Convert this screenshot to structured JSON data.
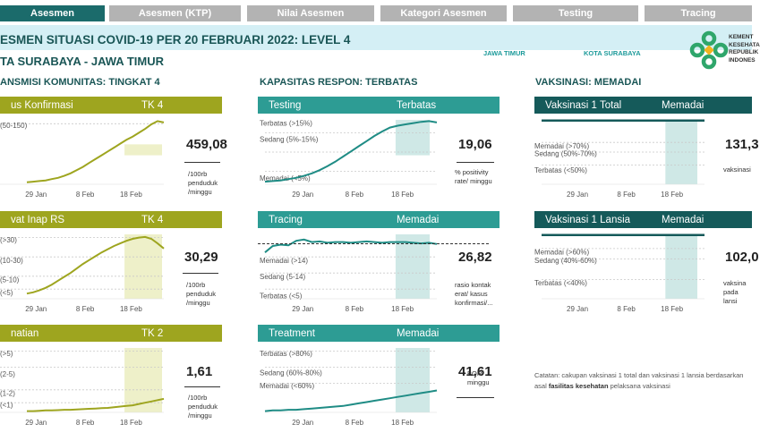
{
  "tabs": [
    {
      "label": "Asesmen",
      "active": true
    },
    {
      "label": "Asesmen (KTP)",
      "active": false
    },
    {
      "label": "Nilai Asesmen",
      "active": false
    },
    {
      "label": "Kategori Asesmen",
      "active": false
    },
    {
      "label": "Testing",
      "active": false
    },
    {
      "label": "Tracing",
      "active": false
    }
  ],
  "header": {
    "title": "ESMEN SITUASI COVID-19 PER 20 FEBRUARI 2022: LEVEL 4",
    "region": "TA SURABAYA - JAWA TIMUR",
    "province_link": "JAWA TIMUR",
    "city_link": "KOTA SURABAYA",
    "logo_text": [
      "KEMENT",
      "KESEHATA",
      "REPUBLIK",
      "INDONES"
    ]
  },
  "colors": {
    "olive": "#9ea51f",
    "teal": "#2d9c94",
    "dark_teal": "#155a5a",
    "active_tab": "#1b6b6b",
    "inactive_tab": "#b3b3b3",
    "banner": "#d4eff5",
    "highlight_olive": "#eef0c9",
    "highlight_teal": "#cfe8e6",
    "line_olive": "#9ea51f",
    "line_teal": "#1f8c85"
  },
  "sections": {
    "transmisi": "ANSMISI KOMUNITAS: TINGKAT 4",
    "kapasitas": "KAPASITAS RESPON: TERBATAS",
    "vaksinasi": "VAKSINASI: MEMADAI"
  },
  "panels": {
    "kasus": {
      "name": "us Konfirmasi",
      "status": "TK 4",
      "value": "459,08",
      "unit": "/100rb\npenduduk\n/minggu",
      "levels": [
        "(50-150)"
      ],
      "xticks": [
        "29 Jan",
        "8 Feb",
        "18 Feb"
      ],
      "series": [
        0.03,
        0.04,
        0.05,
        0.06,
        0.08,
        0.1,
        0.13,
        0.17,
        0.22,
        0.27,
        0.33,
        0.39,
        0.45,
        0.51,
        0.57,
        0.63,
        0.69,
        0.74,
        0.8,
        0.86,
        0.93,
        0.98,
        0.96
      ]
    },
    "rawat": {
      "name": "vat Inap RS",
      "status": "TK 4",
      "value": "30,29",
      "unit": "/100rb\npenduduk\n/minggu",
      "levels": [
        "(>30)",
        "(10-30)",
        "(5-10)",
        "(<5)"
      ],
      "xticks": [
        "29 Jan",
        "8 Feb",
        "18 Feb"
      ],
      "series": [
        0.08,
        0.1,
        0.13,
        0.17,
        0.22,
        0.28,
        0.34,
        0.4,
        0.47,
        0.54,
        0.6,
        0.66,
        0.72,
        0.77,
        0.82,
        0.86,
        0.9,
        0.93,
        0.95,
        0.96,
        0.93,
        0.86,
        0.78
      ]
    },
    "kematian": {
      "name": "natian",
      "status": "TK 2",
      "value": "1,61",
      "unit": "/100rb\npenduduk\n/minggu",
      "levels": [
        "(>5)",
        "(2-5)",
        "(1-2)",
        "(<1)"
      ],
      "xticks": [
        "29 Jan",
        "8 Feb",
        "18 Feb"
      ],
      "series": [
        0.02,
        0.02,
        0.025,
        0.03,
        0.03,
        0.035,
        0.04,
        0.04,
        0.045,
        0.05,
        0.055,
        0.06,
        0.065,
        0.07,
        0.08,
        0.09,
        0.1,
        0.11,
        0.13,
        0.15,
        0.17,
        0.19,
        0.21
      ]
    },
    "testing": {
      "name": "Testing",
      "status": "Terbatas",
      "value": "19,06",
      "unit": "% positivity\nrate/ minggu",
      "levels": [
        "Terbatas (>15%)",
        "Sedang (5%-15%)",
        "Memadai (<5%)"
      ],
      "xticks": [
        "29 Jan",
        "8 Feb",
        "18 Feb"
      ],
      "series": [
        0.04,
        0.05,
        0.06,
        0.08,
        0.1,
        0.13,
        0.17,
        0.22,
        0.28,
        0.35,
        0.43,
        0.51,
        0.59,
        0.67,
        0.75,
        0.82,
        0.88,
        0.91,
        0.93,
        0.95,
        0.97,
        0.98,
        0.96
      ]
    },
    "tracing": {
      "name": "Tracing",
      "status": "Memadai",
      "value": "26,82",
      "unit": "rasio kontak\nerat/ kasus\nkonfirmasi/...",
      "levels": [
        "Memadai (>14)",
        "Sedang (5-14)",
        "Terbatas (<5)"
      ],
      "xticks": [
        "29 Jan",
        "8 Feb",
        "18 Feb"
      ],
      "series": [
        0.72,
        0.82,
        0.84,
        0.83,
        0.9,
        0.92,
        0.88,
        0.89,
        0.87,
        0.88,
        0.88,
        0.87,
        0.88,
        0.89,
        0.88,
        0.87,
        0.88,
        0.88,
        0.88,
        0.87,
        0.86,
        0.87,
        0.85
      ]
    },
    "treatment": {
      "name": "Treatment",
      "status": "Memadai",
      "value": "41,61",
      "unit": "BOR/\nminggu",
      "levels": [
        "Terbatas (>80%)",
        "Sedang (60%-80%)",
        "Memadai (<60%)"
      ],
      "xticks": [
        "29 Jan",
        "8 Feb",
        "18 Feb"
      ],
      "series": [
        0.02,
        0.03,
        0.03,
        0.04,
        0.04,
        0.05,
        0.06,
        0.07,
        0.08,
        0.09,
        0.1,
        0.12,
        0.14,
        0.16,
        0.18,
        0.2,
        0.22,
        0.24,
        0.26,
        0.28,
        0.3,
        0.32,
        0.34
      ]
    },
    "vaks_total": {
      "name": "Vaksinasi 1 Total",
      "status": "Memadai",
      "value": "131,3",
      "unit": "vaksinasi",
      "levels": [
        "Memadai (>70%)",
        "Sedang (50%-70%)",
        "Terbatas (<50%)"
      ],
      "xticks": [
        "29 Jan",
        "8 Feb",
        "18 Feb"
      ],
      "series": [
        0.99,
        0.99,
        0.99,
        0.99,
        0.99,
        0.99,
        0.99,
        0.99,
        0.99,
        0.99,
        0.99,
        0.99,
        0.99,
        0.99,
        0.99,
        0.99,
        0.99,
        0.99,
        0.99,
        0.99,
        0.99,
        0.99,
        0.99
      ]
    },
    "vaks_lansia": {
      "name": "Vaksinasi 1 Lansia",
      "status": "Memadai",
      "value": "102,0",
      "unit": "vaksina\npada lansi",
      "levels": [
        "Memadai (>60%)",
        "Sedang (40%-60%)",
        "Terbatas (<40%)"
      ],
      "xticks": [
        "29 Jan",
        "8 Feb",
        "18 Feb"
      ],
      "series": [
        0.99,
        0.99,
        0.99,
        0.99,
        0.99,
        0.99,
        0.99,
        0.99,
        0.99,
        0.99,
        0.99,
        0.99,
        0.99,
        0.99,
        0.99,
        0.99,
        0.99,
        0.99,
        0.99,
        0.99,
        0.99,
        0.99,
        0.99
      ]
    }
  },
  "note": {
    "prefix": "Catatan: cakupan vaksinasi 1 total dan vaksinasi 1 lansia berdasarkan asal ",
    "bold": "fasilitas kesehatan",
    "suffix": " pelaksana vaksinasi"
  }
}
